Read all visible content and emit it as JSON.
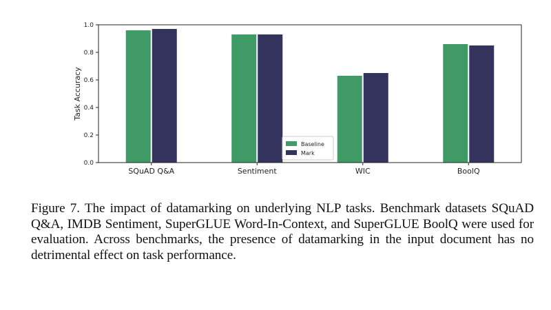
{
  "chart_data": {
    "type": "bar",
    "categories": [
      "SQuAD Q&A",
      "Sentiment",
      "WIC",
      "BoolQ"
    ],
    "series": [
      {
        "name": "Baseline",
        "values": [
          0.96,
          0.93,
          0.63,
          0.86
        ],
        "color": "#3f9a66"
      },
      {
        "name": "Mark",
        "values": [
          0.97,
          0.93,
          0.65,
          0.85
        ],
        "color": "#33335e"
      }
    ],
    "xlabel": "",
    "ylabel": "Task Accuracy",
    "ylim": [
      0,
      1.0
    ],
    "yticks": [
      "0.0",
      "0.2",
      "0.4",
      "0.6",
      "0.8",
      "1.0"
    ],
    "grid": false,
    "legend_position": "lower-right-of-center"
  },
  "caption": {
    "text": "Figure 7.  The impact of datamarking on underlying NLP tasks. Benchmark datasets SQuAD Q&A, IMDB Sentiment, SuperGLUE Word-In-Context, and SuperGLUE BoolQ were used for evaluation. Across benchmarks, the presence of datamarking in the input document has no detrimental effect on task performance."
  }
}
